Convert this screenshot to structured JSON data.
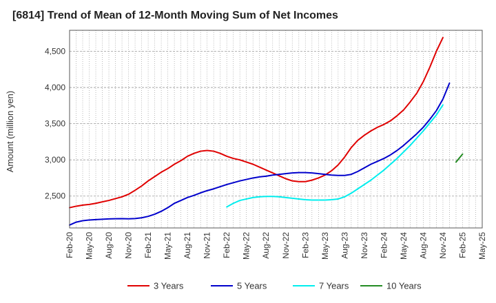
{
  "title": "[6814]  Trend of Mean of 12-Month Moving Sum of Net Incomes",
  "chart_data": {
    "type": "line",
    "title": "[6814]  Trend of Mean of 12-Month Moving Sum of Net Incomes",
    "xlabel": "",
    "ylabel": "Amount (million yen)",
    "x_ticks": [
      "Feb-20",
      "May-20",
      "Aug-20",
      "Nov-20",
      "Feb-21",
      "May-21",
      "Aug-21",
      "Nov-21",
      "Feb-22",
      "May-22",
      "Aug-22",
      "Nov-22",
      "Feb-23",
      "May-23",
      "Aug-23",
      "Nov-23",
      "Feb-24",
      "May-24",
      "Aug-24",
      "Nov-24",
      "Feb-25",
      "May-25"
    ],
    "y_ticks": [
      2500,
      3000,
      3500,
      4000,
      4500
    ],
    "y_tick_labels": [
      "2,500",
      "3,000",
      "3,500",
      "4,000",
      "4,500"
    ],
    "ylim": [
      2060,
      4790
    ],
    "grid": true,
    "legend_position": "bottom",
    "series": [
      {
        "name": "3 Years",
        "color": "#e00000",
        "start": "Feb-20",
        "values": [
          2340,
          2360,
          2375,
          2385,
          2400,
          2420,
          2440,
          2465,
          2490,
          2525,
          2580,
          2640,
          2710,
          2770,
          2830,
          2880,
          2940,
          2990,
          3050,
          3090,
          3120,
          3130,
          3120,
          3090,
          3050,
          3020,
          3000,
          2970,
          2940,
          2900,
          2860,
          2820,
          2780,
          2740,
          2710,
          2700,
          2700,
          2720,
          2750,
          2790,
          2850,
          2930,
          3040,
          3170,
          3270,
          3340,
          3400,
          3450,
          3490,
          3540,
          3610,
          3690,
          3800,
          3920,
          4080,
          4280,
          4500,
          4690
        ]
      },
      {
        "name": "5 Years",
        "color": "#0000cc",
        "start": "Feb-20",
        "values": [
          2100,
          2140,
          2160,
          2170,
          2175,
          2180,
          2185,
          2187,
          2188,
          2186,
          2190,
          2200,
          2220,
          2250,
          2290,
          2340,
          2400,
          2440,
          2480,
          2510,
          2545,
          2575,
          2600,
          2630,
          2660,
          2685,
          2710,
          2730,
          2750,
          2765,
          2775,
          2790,
          2800,
          2810,
          2820,
          2825,
          2825,
          2820,
          2810,
          2800,
          2790,
          2785,
          2785,
          2800,
          2840,
          2890,
          2940,
          2980,
          3020,
          3070,
          3130,
          3200,
          3280,
          3360,
          3450,
          3560,
          3680,
          3840,
          4060
        ]
      },
      {
        "name": "7 Years",
        "color": "#00eeee",
        "start": "Feb-22",
        "values": [
          2350,
          2400,
          2440,
          2460,
          2480,
          2490,
          2495,
          2495,
          2490,
          2480,
          2470,
          2460,
          2450,
          2445,
          2445,
          2445,
          2450,
          2460,
          2490,
          2540,
          2600,
          2660,
          2720,
          2790,
          2860,
          2940,
          3020,
          3110,
          3200,
          3300,
          3400,
          3510,
          3620,
          3760
        ]
      },
      {
        "name": "10 Years",
        "color": "#228b22",
        "start": "Jan-25",
        "values": [
          2970,
          3080
        ]
      }
    ]
  }
}
